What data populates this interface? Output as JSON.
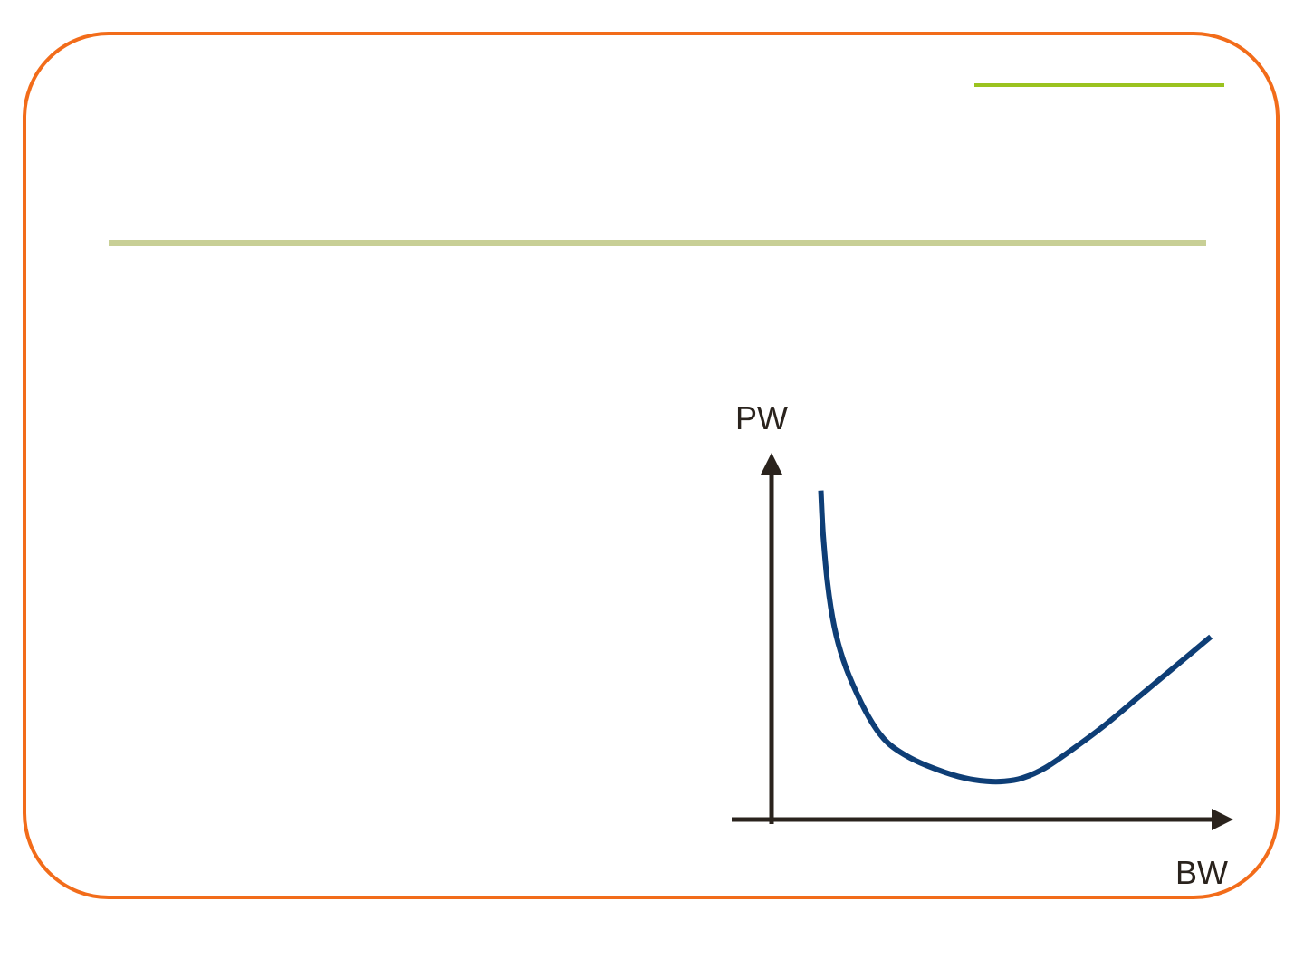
{
  "colors": {
    "frame": "#f26c1a",
    "accent_line": "#9bc31f",
    "title_rule": "#c8cf96",
    "axis": "#2a231d",
    "curve": "#0e3e76"
  },
  "chart_data": {
    "type": "line",
    "title": "",
    "xlabel": "BW",
    "ylabel": "PW",
    "xlim": [
      0,
      100
    ],
    "ylim": [
      0,
      100
    ],
    "grid": false,
    "legend": "none",
    "series": [
      {
        "x": [
          11,
          11.5,
          12.5,
          14,
          16,
          19,
          22.5,
          26,
          31,
          37,
          43,
          48,
          52,
          56,
          61,
          67,
          74,
          82,
          90,
          98
        ],
        "y": [
          99,
          86,
          71,
          58,
          48,
          38,
          29,
          23,
          18.5,
          15,
          12.5,
          11.5,
          11.5,
          12.5,
          15.5,
          21,
          28,
          37,
          46,
          55
        ]
      }
    ]
  }
}
